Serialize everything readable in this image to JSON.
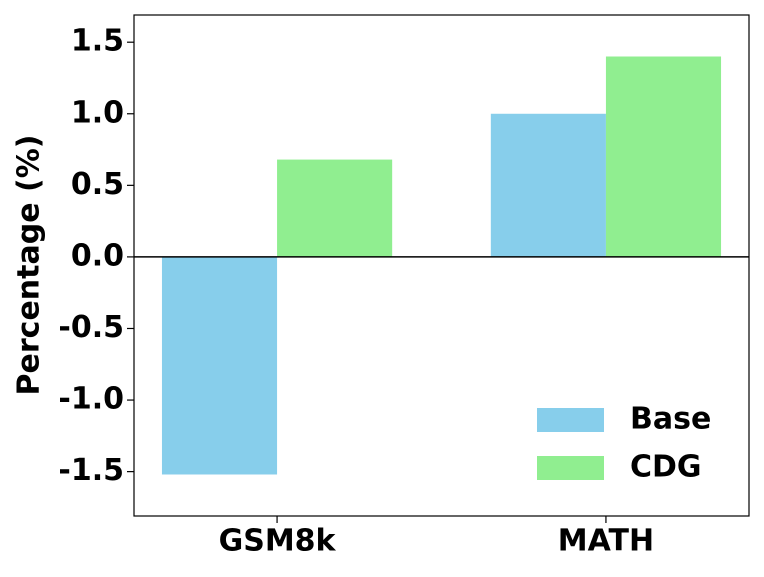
{
  "chart_data": {
    "type": "bar",
    "y_label": "Percentage (%)",
    "categories": [
      "GSM8k",
      "MATH"
    ],
    "series": [
      {
        "name": "Base",
        "color": "#87ceeb",
        "values": [
          -1.52,
          1.0
        ]
      },
      {
        "name": "CDG",
        "color": "#90ee90",
        "values": [
          0.68,
          1.4
        ]
      }
    ],
    "ylim": [
      -1.81,
      1.69
    ],
    "yticks": [
      -1.5,
      {
        "value": -1.0,
        "label": "-1.0"
      },
      -0.5,
      {
        "value": 0.0,
        "label": "0.0"
      },
      0.5,
      {
        "value": 1.0,
        "label": "1.0"
      },
      1.5
    ],
    "legend": "lower right"
  }
}
